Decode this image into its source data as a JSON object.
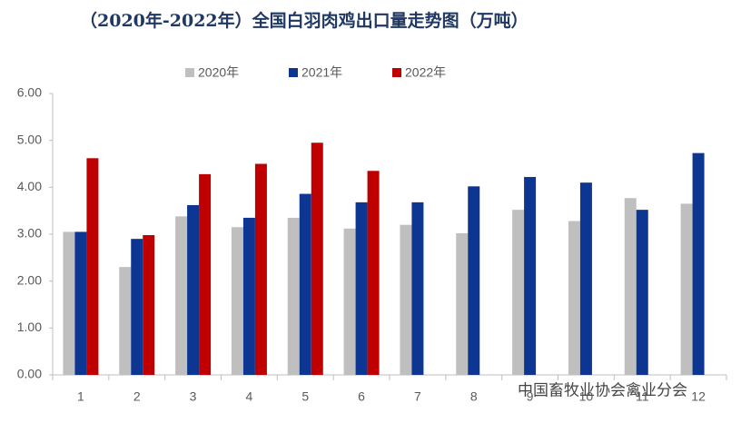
{
  "chart_data": {
    "type": "bar",
    "title": "（2020年-2022年）全国白羽肉鸡出口量走势图（万吨）",
    "source": "中国畜牧业协会禽业分会",
    "categories": [
      "1",
      "2",
      "3",
      "4",
      "5",
      "6",
      "7",
      "8",
      "9",
      "10",
      "11",
      "12"
    ],
    "series": [
      {
        "name": "2020年",
        "color": "#bfbfbf",
        "values": [
          3.05,
          2.3,
          3.38,
          3.15,
          3.35,
          3.12,
          3.2,
          3.02,
          3.52,
          3.28,
          3.77,
          3.65
        ]
      },
      {
        "name": "2021年",
        "color": "#0d3692",
        "values": [
          3.05,
          2.9,
          3.62,
          3.35,
          3.86,
          3.68,
          3.68,
          4.02,
          4.22,
          4.1,
          3.52,
          4.73
        ]
      },
      {
        "name": "2022年",
        "color": "#c00000",
        "values": [
          4.62,
          2.98,
          4.28,
          4.5,
          4.95,
          4.35,
          null,
          null,
          null,
          null,
          null,
          null
        ]
      }
    ],
    "ylim": [
      0,
      6
    ],
    "yticks": [
      {
        "value": 0,
        "label": "0.00"
      },
      {
        "value": 1,
        "label": "1.00"
      },
      {
        "value": 2,
        "label": "2.00"
      },
      {
        "value": 3,
        "label": "3.00"
      },
      {
        "value": 4,
        "label": "4.00"
      },
      {
        "value": 5,
        "label": "5.00"
      },
      {
        "value": 6,
        "label": "6.00"
      }
    ],
    "grid": false
  }
}
